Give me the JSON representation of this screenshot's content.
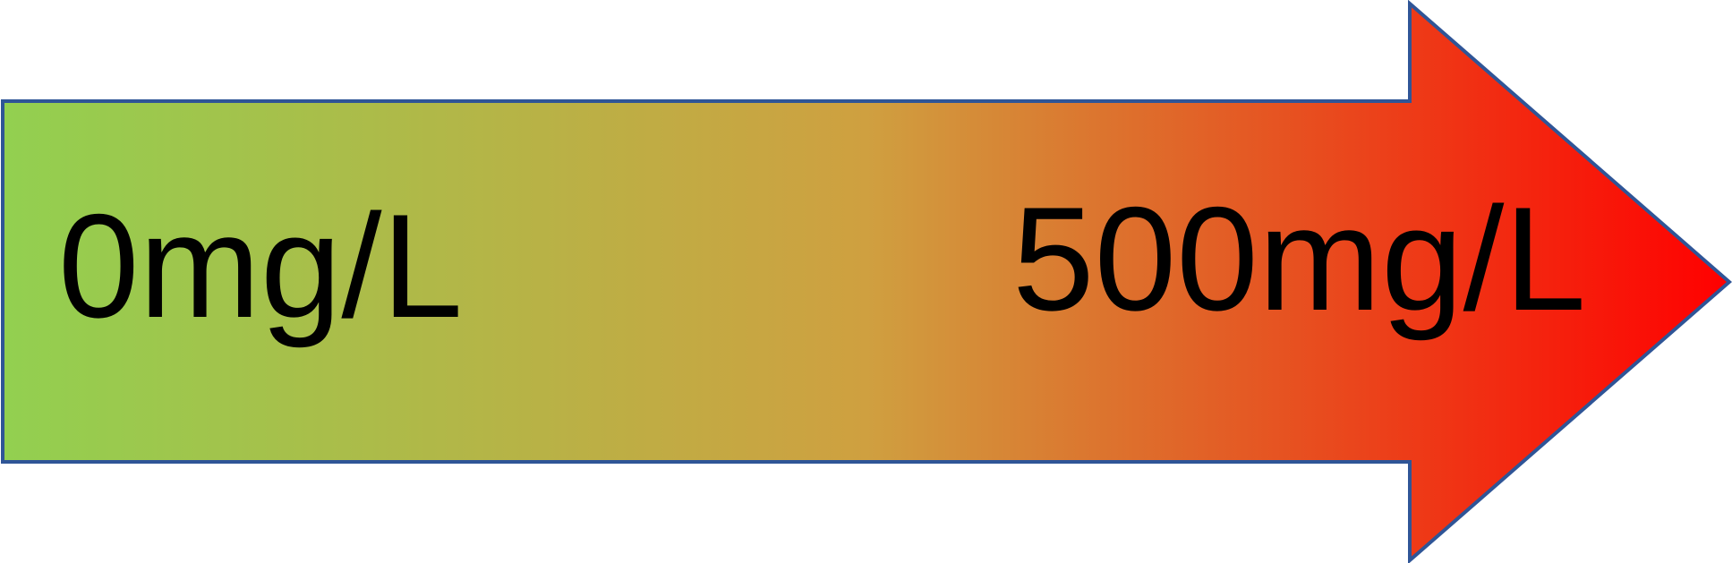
{
  "arrow": {
    "start_label": "0mg/L",
    "end_label": "500mg/L",
    "colors": {
      "start": "#92d050",
      "middle": "#cfa040",
      "end": "#ff0000",
      "outline": "#2f5597"
    }
  }
}
